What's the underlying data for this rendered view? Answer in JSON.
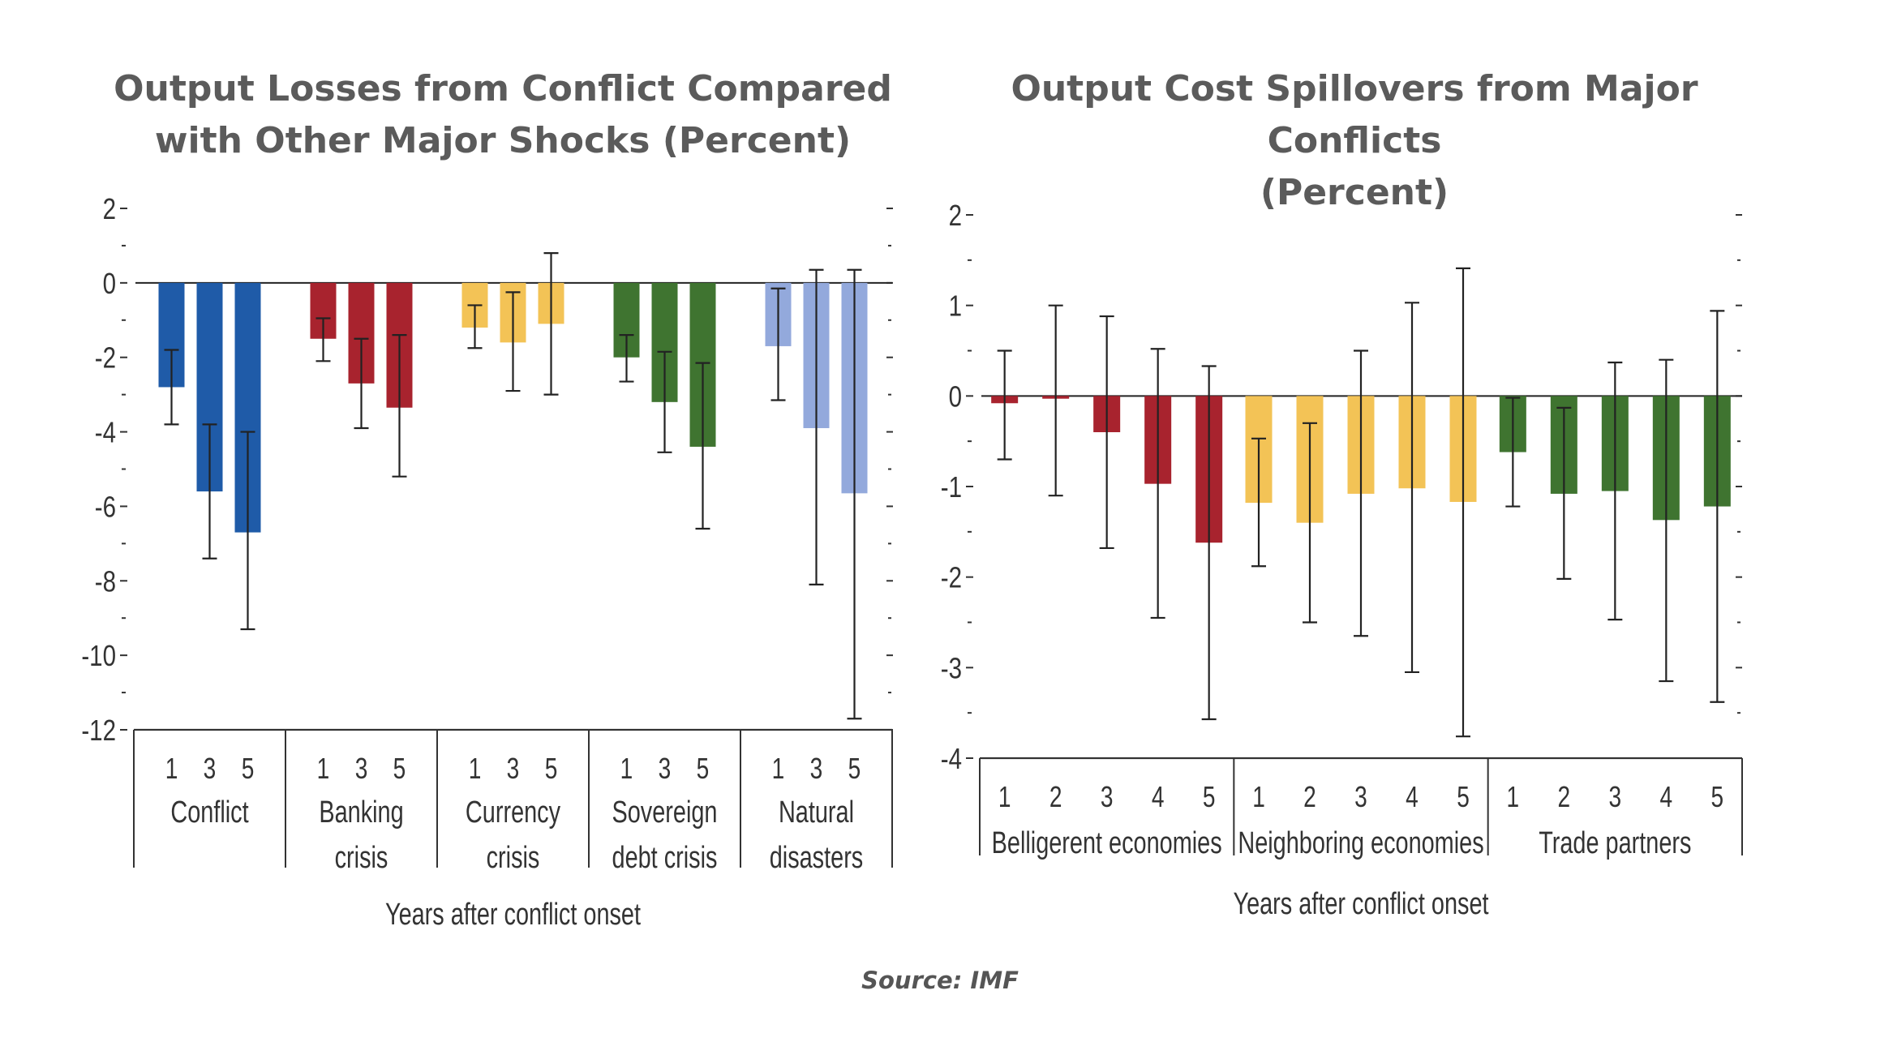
{
  "source": "Source: IMF",
  "colors": {
    "conflict": "#1f5ba8",
    "banking": "#a8232e",
    "currency": "#f3c356",
    "sovereign": "#3f7430",
    "natural": "#93a9dc",
    "belligerent": "#a8232e",
    "neighboring": "#f3c356",
    "trade": "#3f7430",
    "error_bar": "#222222"
  },
  "chart_data": [
    {
      "type": "bar",
      "title_lines": [
        "Output Losses from Conflict Compared",
        "with Other Major Shocks (Percent)"
      ],
      "xlabel": "Years after conflict onset",
      "ylabel": "",
      "ylim": [
        -12,
        2
      ],
      "yticks": [
        2,
        0,
        -2,
        -4,
        -6,
        -8,
        -10,
        -12
      ],
      "grid": false,
      "error_bars": true,
      "groups": [
        {
          "name_lines": [
            "Conflict"
          ],
          "color_key": "conflict",
          "bars": [
            {
              "x": "1",
              "value": -2.8,
              "lo": -3.8,
              "hi": -1.8
            },
            {
              "x": "3",
              "value": -5.6,
              "lo": -7.4,
              "hi": -3.8
            },
            {
              "x": "5",
              "value": -6.7,
              "lo": -9.3,
              "hi": -4.0
            }
          ]
        },
        {
          "name_lines": [
            "Banking",
            "crisis"
          ],
          "color_key": "banking",
          "bars": [
            {
              "x": "1",
              "value": -1.5,
              "lo": -2.1,
              "hi": -0.95
            },
            {
              "x": "3",
              "value": -2.7,
              "lo": -3.9,
              "hi": -1.5
            },
            {
              "x": "5",
              "value": -3.35,
              "lo": -5.2,
              "hi": -1.4
            }
          ]
        },
        {
          "name_lines": [
            "Currency",
            "crisis"
          ],
          "color_key": "currency",
          "bars": [
            {
              "x": "1",
              "value": -1.2,
              "lo": -1.75,
              "hi": -0.6
            },
            {
              "x": "3",
              "value": -1.6,
              "lo": -2.9,
              "hi": -0.25
            },
            {
              "x": "5",
              "value": -1.1,
              "lo": -3.0,
              "hi": 0.8
            }
          ]
        },
        {
          "name_lines": [
            "Sovereign",
            "debt crisis"
          ],
          "color_key": "sovereign",
          "bars": [
            {
              "x": "1",
              "value": -2.0,
              "lo": -2.65,
              "hi": -1.4
            },
            {
              "x": "3",
              "value": -3.2,
              "lo": -4.55,
              "hi": -1.85
            },
            {
              "x": "5",
              "value": -4.4,
              "lo": -6.6,
              "hi": -2.15
            }
          ]
        },
        {
          "name_lines": [
            "Natural",
            "disasters"
          ],
          "color_key": "natural",
          "bars": [
            {
              "x": "1",
              "value": -1.7,
              "lo": -3.15,
              "hi": -0.15
            },
            {
              "x": "3",
              "value": -3.9,
              "lo": -8.1,
              "hi": 0.35
            },
            {
              "x": "5",
              "value": -5.65,
              "lo": -11.7,
              "hi": 0.35
            }
          ]
        }
      ]
    },
    {
      "type": "bar",
      "title_lines": [
        "Output Cost Spillovers from Major Conflicts",
        "(Percent)"
      ],
      "xlabel": "Years after conflict onset",
      "ylabel": "",
      "ylim": [
        -4,
        2
      ],
      "yticks": [
        2,
        1,
        0,
        -1,
        -2,
        -3,
        -4
      ],
      "grid": false,
      "error_bars": true,
      "groups": [
        {
          "name_lines": [
            "Belligerent economies"
          ],
          "color_key": "belligerent",
          "bars": [
            {
              "x": "1",
              "value": -0.08,
              "lo": -0.7,
              "hi": 0.5
            },
            {
              "x": "2",
              "value": -0.03,
              "lo": -1.1,
              "hi": 1.0
            },
            {
              "x": "3",
              "value": -0.4,
              "lo": -1.68,
              "hi": 0.88
            },
            {
              "x": "4",
              "value": -0.97,
              "lo": -2.45,
              "hi": 0.52
            },
            {
              "x": "5",
              "value": -1.62,
              "lo": -3.57,
              "hi": 0.33
            }
          ]
        },
        {
          "name_lines": [
            "Neighboring economies"
          ],
          "color_key": "neighboring",
          "bars": [
            {
              "x": "1",
              "value": -1.18,
              "lo": -1.88,
              "hi": -0.47
            },
            {
              "x": "2",
              "value": -1.4,
              "lo": -2.5,
              "hi": -0.3
            },
            {
              "x": "3",
              "value": -1.08,
              "lo": -2.65,
              "hi": 0.5
            },
            {
              "x": "4",
              "value": -1.02,
              "lo": -3.05,
              "hi": 1.03
            },
            {
              "x": "5",
              "value": -1.17,
              "lo": -3.76,
              "hi": 1.41
            }
          ]
        },
        {
          "name_lines": [
            "Trade partners"
          ],
          "color_key": "trade",
          "bars": [
            {
              "x": "1",
              "value": -0.62,
              "lo": -1.22,
              "hi": -0.02
            },
            {
              "x": "2",
              "value": -1.08,
              "lo": -2.02,
              "hi": -0.13
            },
            {
              "x": "3",
              "value": -1.05,
              "lo": -2.47,
              "hi": 0.37
            },
            {
              "x": "4",
              "value": -1.37,
              "lo": -3.15,
              "hi": 0.4
            },
            {
              "x": "5",
              "value": -1.22,
              "lo": -3.38,
              "hi": 0.94
            }
          ]
        }
      ]
    }
  ]
}
